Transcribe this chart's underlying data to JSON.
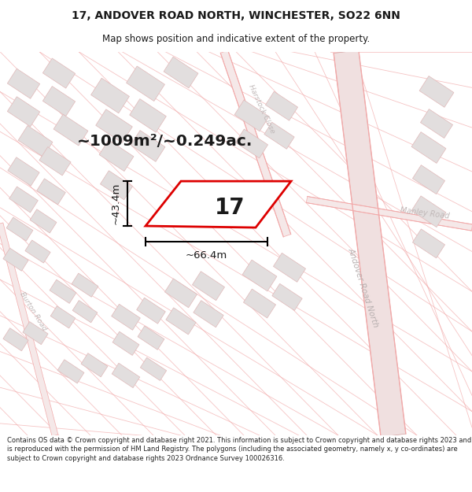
{
  "title_line1": "17, ANDOVER ROAD NORTH, WINCHESTER, SO22 6NN",
  "title_line2": "Map shows position and indicative extent of the property.",
  "area_text": "~1009m²/~0.249ac.",
  "label_17": "17",
  "dim_height": "~43.4m",
  "dim_width": "~66.4m",
  "footer_text": "Contains OS data © Crown copyright and database right 2021. This information is subject to Crown copyright and database rights 2023 and is reproduced with the permission of HM Land Registry. The polygons (including the associated geometry, namely x, y co-ordinates) are subject to Crown copyright and database rights 2023 Ordnance Survey 100026316.",
  "bg_color": "#ffffff",
  "map_bg": "#ffffff",
  "road_color": "#f2aaaa",
  "road_color2": "#f7cccc",
  "building_color": "#e2dede",
  "building_edge": "#e0b8b8",
  "plot_outline_color": "#dd0000",
  "plot_fill": "#ffffff",
  "text_color": "#1a1a1a",
  "road_label_color": "#aaaaaa",
  "andover_road_color": "#e8c8c8",
  "andover_road_edge": "#d09090"
}
